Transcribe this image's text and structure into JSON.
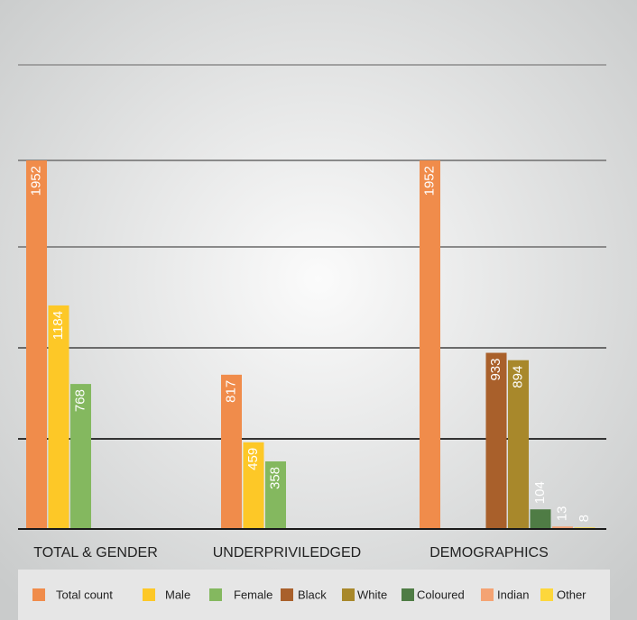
{
  "chart_data": {
    "type": "bar",
    "categories": [
      "TOTAL & GENDER",
      "UNDERPRIVILEDGED",
      "DEMOGRAPHICS"
    ],
    "series": [
      {
        "name": "Total count",
        "color": "#f08c4b",
        "values": [
          1952,
          817,
          1952
        ]
      },
      {
        "name": "Male",
        "color": "#fdc827",
        "values": [
          1184,
          459,
          null
        ]
      },
      {
        "name": "Female",
        "color": "#84b85f",
        "values": [
          768,
          358,
          null
        ]
      },
      {
        "name": "Black",
        "color": "#a9602b",
        "values": [
          null,
          null,
          933
        ]
      },
      {
        "name": "White",
        "color": "#a8882b",
        "values": [
          null,
          null,
          894
        ]
      },
      {
        "name": "Coloured",
        "color": "#4f7c45",
        "values": [
          null,
          null,
          104
        ]
      },
      {
        "name": "Indian",
        "color": "#f4a373",
        "values": [
          null,
          null,
          13
        ]
      },
      {
        "name": "Other",
        "color": "#fdd73c",
        "values": [
          null,
          null,
          8
        ]
      }
    ],
    "ylim": [
      0,
      2458
    ]
  }
}
